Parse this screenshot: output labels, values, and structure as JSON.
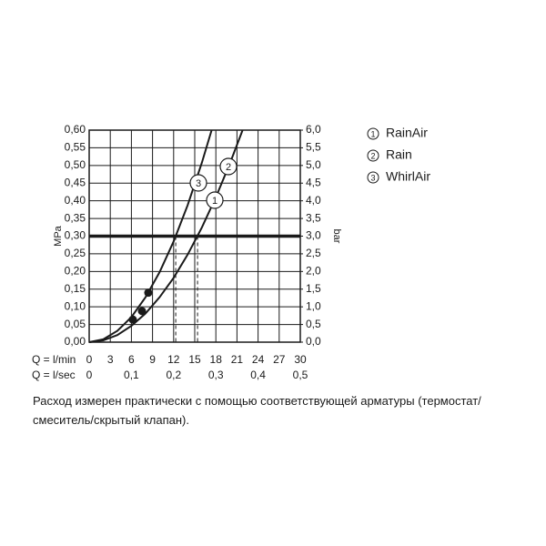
{
  "chart_data": {
    "type": "line",
    "ylabel": "MPa",
    "y2label": "bar",
    "xlabel": "Q = l/min",
    "x2label": "Q = l/sec",
    "xlim": [
      0,
      30
    ],
    "xticks": [
      0,
      3,
      6,
      9,
      12,
      15,
      18,
      21,
      24,
      27,
      30
    ],
    "x2ticks": [
      {
        "value": 0,
        "label": "0"
      },
      {
        "value": 6,
        "label": "0,1"
      },
      {
        "value": 12,
        "label": "0,2"
      },
      {
        "value": 18,
        "label": "0,3"
      },
      {
        "value": 24,
        "label": "0,4"
      },
      {
        "value": 30,
        "label": "0,5"
      }
    ],
    "ylim": [
      0,
      0.6
    ],
    "yticks": [
      {
        "value": 0,
        "label": "0,00"
      },
      {
        "value": 0.05,
        "label": "0,05"
      },
      {
        "value": 0.1,
        "label": "0,10"
      },
      {
        "value": 0.15,
        "label": "0,15"
      },
      {
        "value": 0.2,
        "label": "0,20"
      },
      {
        "value": 0.25,
        "label": "0,25"
      },
      {
        "value": 0.3,
        "label": "0,30"
      },
      {
        "value": 0.35,
        "label": "0,35"
      },
      {
        "value": 0.4,
        "label": "0,40"
      },
      {
        "value": 0.45,
        "label": "0,45"
      },
      {
        "value": 0.5,
        "label": "0,50"
      },
      {
        "value": 0.55,
        "label": "0,55"
      },
      {
        "value": 0.6,
        "label": "0,60"
      }
    ],
    "y2lim": [
      0,
      6
    ],
    "y2ticks": [
      {
        "value": 0,
        "label": "0,0"
      },
      {
        "value": 0.5,
        "label": "0,5"
      },
      {
        "value": 1,
        "label": "1,0"
      },
      {
        "value": 1.5,
        "label": "1,5"
      },
      {
        "value": 2,
        "label": "2,0"
      },
      {
        "value": 2.5,
        "label": "2,5"
      },
      {
        "value": 3,
        "label": "3,0"
      },
      {
        "value": 3.5,
        "label": "3,5"
      },
      {
        "value": 4,
        "label": "4,0"
      },
      {
        "value": 4.5,
        "label": "4,5"
      },
      {
        "value": 5,
        "label": "5,0"
      },
      {
        "value": 5.5,
        "label": "5,5"
      },
      {
        "value": 6,
        "label": "6,0"
      }
    ],
    "grid": true,
    "color": "#1a1a1a",
    "reference_y": 0.3,
    "reference_x": [
      12.3,
      15.4
    ],
    "legend": [
      {
        "number": "1",
        "name": "RainAir"
      },
      {
        "number": "2",
        "name": "Rain"
      },
      {
        "number": "3",
        "name": "WhirlAir"
      }
    ],
    "series": [
      {
        "x": [
          0,
          2,
          4,
          6,
          8,
          10,
          12,
          14,
          16,
          17.4
        ],
        "values": [
          0,
          0.008,
          0.032,
          0.071,
          0.127,
          0.198,
          0.285,
          0.388,
          0.507,
          0.6
        ]
      },
      {
        "x": [
          0,
          2,
          4,
          6,
          8,
          10,
          12,
          14,
          16,
          18,
          20,
          21.8
        ],
        "values": [
          0,
          0.005,
          0.02,
          0.046,
          0.081,
          0.127,
          0.182,
          0.248,
          0.324,
          0.41,
          0.506,
          0.6
        ]
      }
    ],
    "points": {
      "x": [
        6.2,
        7.5,
        8.4
      ],
      "values": [
        0.064,
        0.088,
        0.14
      ]
    },
    "note": "Расход измерен практически с помощью соответствующей арматуры (термостат/смеситель/скрытый клапан)."
  }
}
